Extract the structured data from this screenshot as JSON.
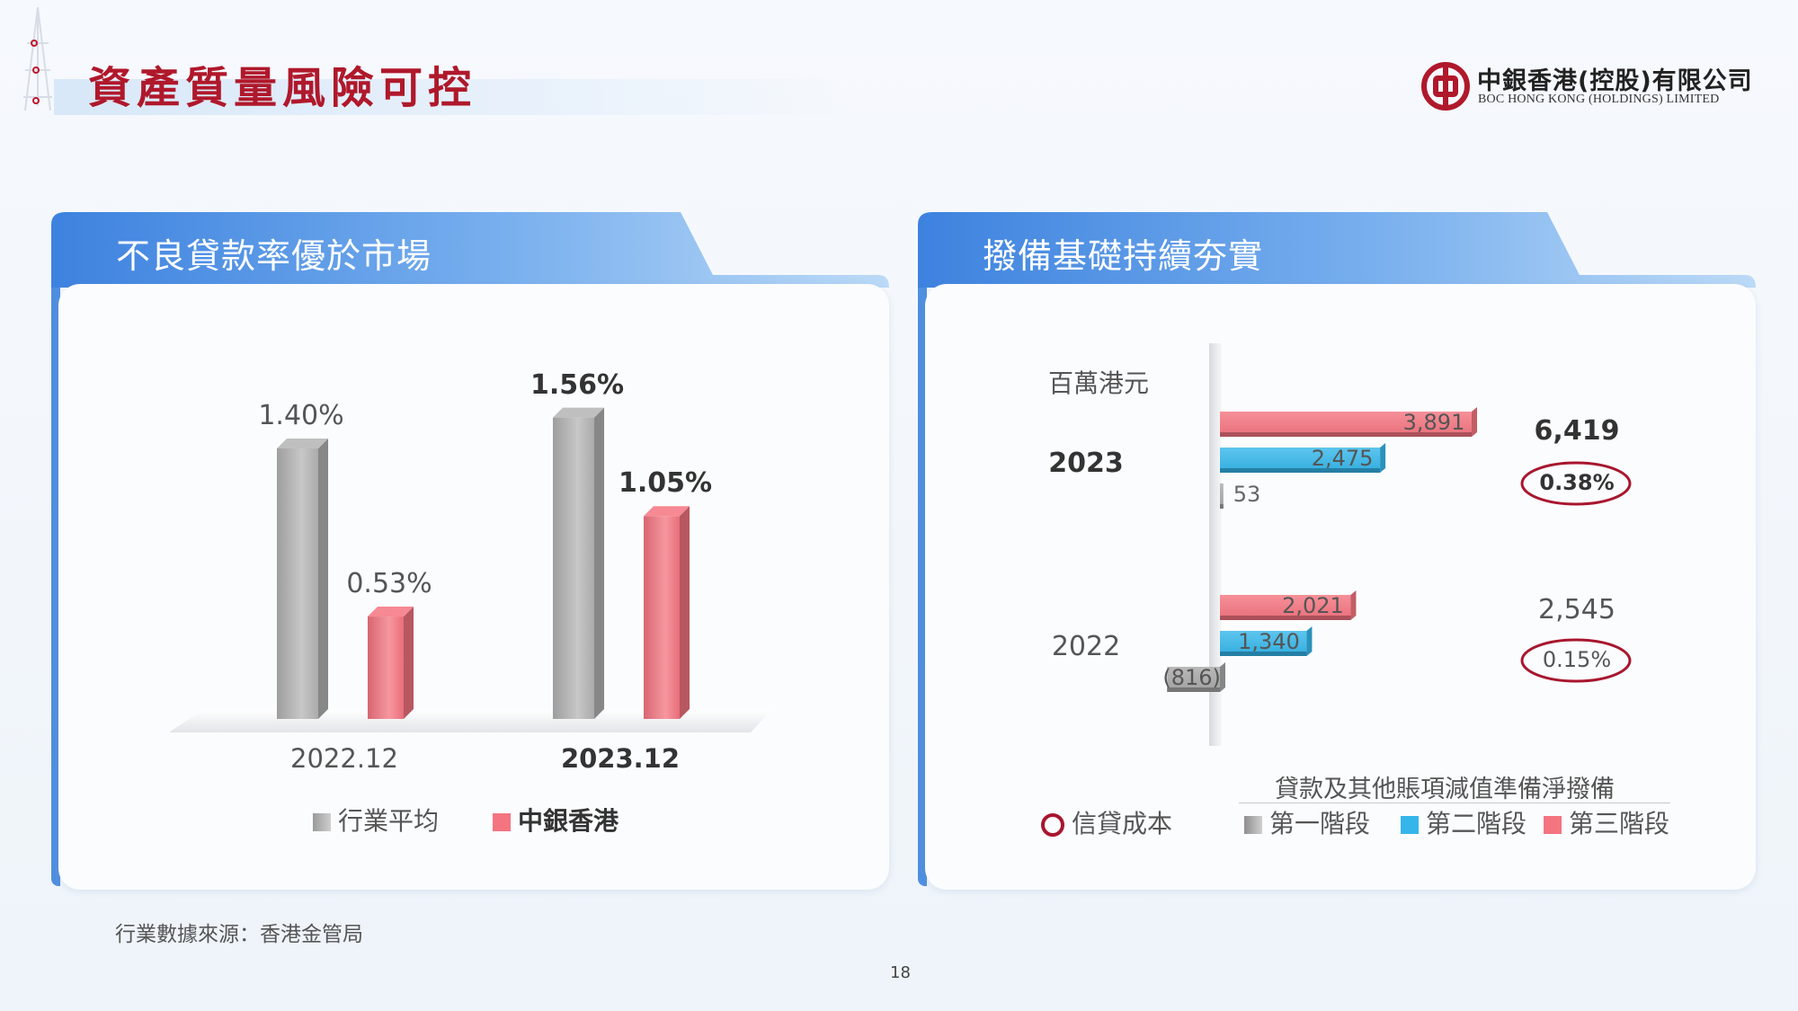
{
  "header": {
    "title": "資產質量風險可控"
  },
  "logo": {
    "name_cn": "中銀香港(控股)有限公司",
    "name_en": "BOC HONG KONG (HOLDINGS) LIMITED"
  },
  "left_panel": {
    "title": "不良貸款率優於市場"
  },
  "right_panel": {
    "title": "撥備基礎持續夯實",
    "unit": "百萬港元",
    "legend_title": "貸款及其他賬項減值準備淨撥備"
  },
  "chart_data": [
    {
      "type": "bar",
      "categories": [
        "2022.12",
        "2023.12"
      ],
      "series": [
        {
          "name": "行業平均",
          "values": [
            1.4,
            1.56
          ],
          "labels": [
            "1.40%",
            "1.56%"
          ],
          "color": "#b4b4b4"
        },
        {
          "name": "中銀香港",
          "values": [
            0.53,
            1.05
          ],
          "labels": [
            "0.53%",
            "1.05%"
          ],
          "color": "#f47480"
        }
      ]
    },
    {
      "type": "bar",
      "orientation": "horizontal",
      "categories": [
        "2023",
        "2022"
      ],
      "series": [
        {
          "name": "第三階段",
          "values": [
            3891,
            2021
          ],
          "labels": [
            "3,891",
            "2,021"
          ],
          "color": "#f47480"
        },
        {
          "name": "第二階段",
          "values": [
            2475,
            1340
          ],
          "labels": [
            "2,475",
            "1,340"
          ],
          "color": "#35b6ea"
        },
        {
          "name": "第一階段",
          "values": [
            53,
            -816
          ],
          "labels": [
            "53",
            "(816)"
          ],
          "color": "#a8a8a8"
        }
      ],
      "totals": [
        "6,419",
        "2,545"
      ],
      "credit_cost": {
        "name": "信貸成本",
        "labels": [
          "0.38%",
          "0.15%"
        ],
        "color": "#a8162e"
      }
    }
  ],
  "footnote": "行業數據來源：香港金管局",
  "page_number": "18"
}
